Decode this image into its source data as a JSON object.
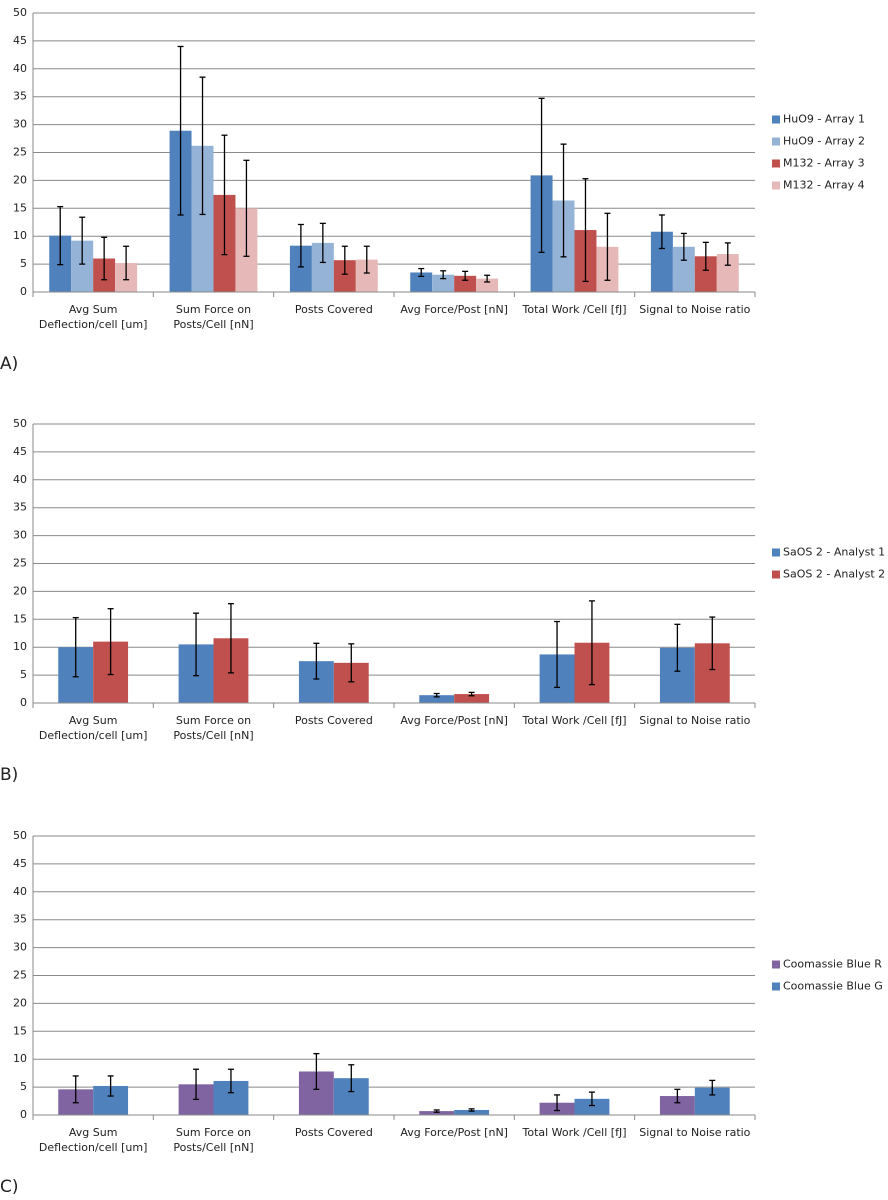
{
  "chart_data": [
    {
      "type": "bar",
      "panel_label": "A)",
      "categories": [
        "Avg Sum Deflection/cell [um]",
        "Sum Force on Posts/Cell [nN]",
        "Posts Covered",
        "Avg Force/Post [nN]",
        "Total Work /Cell [fJ]",
        "Signal to Noise ratio"
      ],
      "series": [
        {
          "name": "HuO9 - Array 1",
          "color": "#4f81bd",
          "values": [
            10.1,
            28.9,
            8.3,
            3.5,
            20.9,
            10.8
          ],
          "errors": [
            5.2,
            15.1,
            3.8,
            0.7,
            13.8,
            3.0
          ]
        },
        {
          "name": "HuO9 - Array 2",
          "color": "#95b3d7",
          "values": [
            9.2,
            26.2,
            8.8,
            3.1,
            16.4,
            8.1
          ],
          "errors": [
            4.2,
            12.3,
            3.5,
            0.7,
            10.1,
            2.4
          ]
        },
        {
          "name": "M132 - Array 3",
          "color": "#c0504d",
          "values": [
            6.0,
            17.4,
            5.7,
            2.9,
            11.1,
            6.4
          ],
          "errors": [
            3.8,
            10.7,
            2.5,
            0.8,
            9.2,
            2.5
          ]
        },
        {
          "name": "M132 - Array 4",
          "color": "#e6b9b8",
          "values": [
            5.2,
            15.0,
            5.8,
            2.4,
            8.1,
            6.8
          ],
          "errors": [
            3.0,
            8.6,
            2.4,
            0.6,
            6.0,
            2.0
          ]
        }
      ],
      "ylim": [
        0,
        50
      ],
      "yticks": [
        0,
        5,
        10,
        15,
        20,
        25,
        30,
        35,
        40,
        45,
        50
      ],
      "grid": true,
      "legend": "right"
    },
    {
      "type": "bar",
      "panel_label": "B)",
      "categories": [
        "Avg Sum Deflection/cell [um]",
        "Sum Force on Posts/Cell [nN]",
        "Posts Covered",
        "Avg Force/Post [nN]",
        "Total Work /Cell [fJ]",
        "Signal to Noise ratio"
      ],
      "series": [
        {
          "name": "SaOS 2 - Analyst 1",
          "color": "#4f81bd",
          "values": [
            10.0,
            10.5,
            7.5,
            1.4,
            8.7,
            9.9
          ],
          "errors": [
            5.3,
            5.6,
            3.2,
            0.3,
            5.9,
            4.2
          ]
        },
        {
          "name": "SaOS 2 - Analyst 2",
          "color": "#c0504d",
          "values": [
            11.0,
            11.6,
            7.2,
            1.6,
            10.8,
            10.7
          ],
          "errors": [
            5.9,
            6.2,
            3.4,
            0.3,
            7.5,
            4.7
          ]
        }
      ],
      "ylim": [
        0,
        50
      ],
      "yticks": [
        0,
        5,
        10,
        15,
        20,
        25,
        30,
        35,
        40,
        45,
        50
      ],
      "grid": true,
      "legend": "right"
    },
    {
      "type": "bar",
      "panel_label": "C)",
      "categories": [
        "Avg Sum Deflection/cell [um]",
        "Sum Force on Posts/Cell [nN]",
        "Posts Covered",
        "Avg Force/Post [nN]",
        "Total Work /Cell [fJ]",
        "Signal to Noise ratio"
      ],
      "series": [
        {
          "name": "Coomassie Blue R",
          "color": "#8064a2",
          "values": [
            4.6,
            5.5,
            7.8,
            0.7,
            2.2,
            3.4
          ],
          "errors": [
            2.4,
            2.7,
            3.2,
            0.2,
            1.4,
            1.2
          ]
        },
        {
          "name": "Coomassie Blue G",
          "color": "#4f81bd",
          "values": [
            5.2,
            6.1,
            6.6,
            0.9,
            2.9,
            4.9
          ],
          "errors": [
            1.8,
            2.1,
            2.4,
            0.2,
            1.2,
            1.3
          ]
        }
      ],
      "ylim": [
        0,
        50
      ],
      "yticks": [
        0,
        5,
        10,
        15,
        20,
        25,
        30,
        35,
        40,
        45,
        50
      ],
      "grid": true,
      "legend": "right"
    }
  ]
}
